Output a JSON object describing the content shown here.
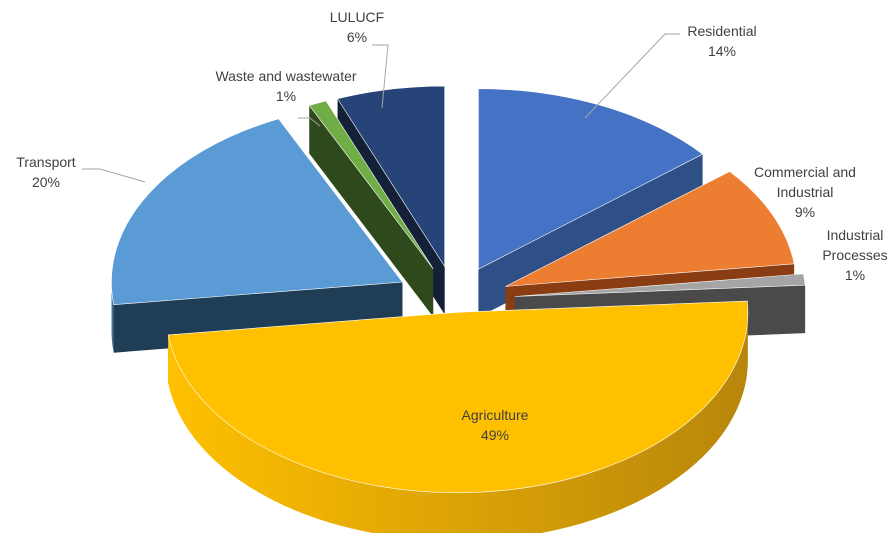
{
  "chart_data": {
    "type": "pie",
    "style": "3d-exploded",
    "legend": "none",
    "slices": [
      {
        "name": "Residential",
        "value": 14,
        "display": "14%",
        "color": "#4472c4",
        "side": "#2f4f87"
      },
      {
        "name": "Commercial and Industrial",
        "name_lines": [
          "Commercial and",
          "Industrial"
        ],
        "value": 9,
        "display": "9%",
        "color": "#ed7d31",
        "side": "#8a3d12"
      },
      {
        "name": "Industrial Processes",
        "name_lines": [
          "Industrial",
          "Processes"
        ],
        "value": 1,
        "display": "1%",
        "color": "#a5a5a5",
        "side": "#4a4a4a"
      },
      {
        "name": "Agriculture",
        "value": 49,
        "display": "49%",
        "color": "#ffc000",
        "side": "#b8860b"
      },
      {
        "name": "Transport",
        "value": 20,
        "display": "20%",
        "color": "#5b9bd5",
        "side": "#1f3d54"
      },
      {
        "name": "Waste and wastewater",
        "value": 1,
        "display": "1%",
        "color": "#70ad47",
        "side": "#2e4a1c"
      },
      {
        "name": "LULUCF",
        "value": 6,
        "display": "6%",
        "color": "#264478",
        "side": "#141f38"
      }
    ]
  }
}
